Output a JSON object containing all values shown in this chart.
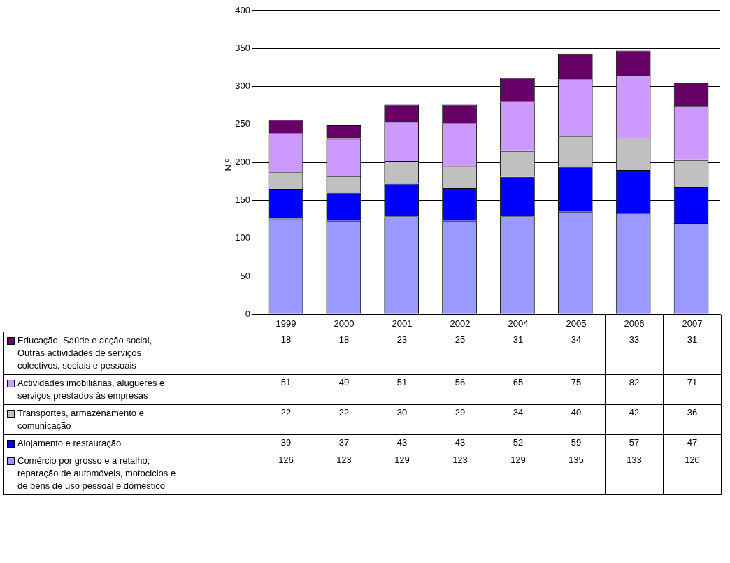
{
  "chart_data": {
    "type": "bar",
    "ylabel": "N.º",
    "categories": [
      "1999",
      "2000",
      "2001",
      "2002",
      "2004",
      "2005",
      "2006",
      "2007"
    ],
    "series": [
      {
        "name": "Comércio por grosso e a retalho; reparação de automóveis, motociclos e de bens de uso pessoal e doméstico",
        "color": "#9999ff",
        "values": [
          126,
          123,
          129,
          123,
          129,
          135,
          133,
          120
        ]
      },
      {
        "name": "Alojamento e restauração",
        "color": "#0000ff",
        "values": [
          39,
          37,
          43,
          43,
          52,
          59,
          57,
          47
        ]
      },
      {
        "name": "Transportes, armazenamento e comunicação",
        "color": "#c0c0c0",
        "values": [
          22,
          22,
          30,
          29,
          34,
          40,
          42,
          36
        ]
      },
      {
        "name": "Actividades imobiliárias, alugueres e serviços prestados às empresas",
        "color": "#cc99ff",
        "values": [
          51,
          49,
          51,
          56,
          65,
          75,
          82,
          71
        ]
      },
      {
        "name": "Educação, Saúde e acção social, Outras actividades de serviços colectivos, sociais e pessoais",
        "color": "#660066",
        "values": [
          18,
          18,
          23,
          25,
          31,
          34,
          33,
          31
        ]
      }
    ],
    "stacked": true,
    "data_labels": true,
    "legend": "bottom",
    "grid": "y",
    "ylim": [
      0,
      400
    ],
    "yticks": [
      0,
      50,
      100,
      150,
      200,
      250,
      300,
      350,
      400
    ]
  }
}
